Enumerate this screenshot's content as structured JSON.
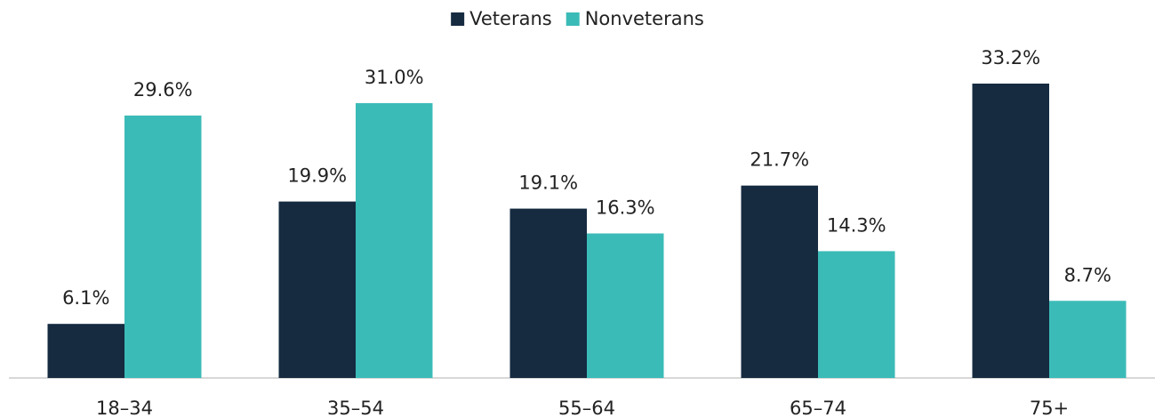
{
  "chart_data": {
    "type": "bar",
    "categories": [
      "18–34",
      "35–54",
      "55–64",
      "65–74",
      "75+"
    ],
    "series": [
      {
        "name": "Veterans",
        "color": "#162b40",
        "values": [
          6.1,
          19.9,
          19.1,
          21.7,
          33.2
        ],
        "value_labels": [
          "6.1%",
          "19.9%",
          "19.1%",
          "21.7%",
          "33.2%"
        ]
      },
      {
        "name": "Nonveterans",
        "color": "#3bbbb7",
        "values": [
          29.6,
          31.0,
          16.3,
          14.3,
          8.7
        ],
        "value_labels": [
          "29.6%",
          "31.0%",
          "16.3%",
          "14.3%",
          "8.7%"
        ]
      }
    ],
    "legend": "top"
  }
}
